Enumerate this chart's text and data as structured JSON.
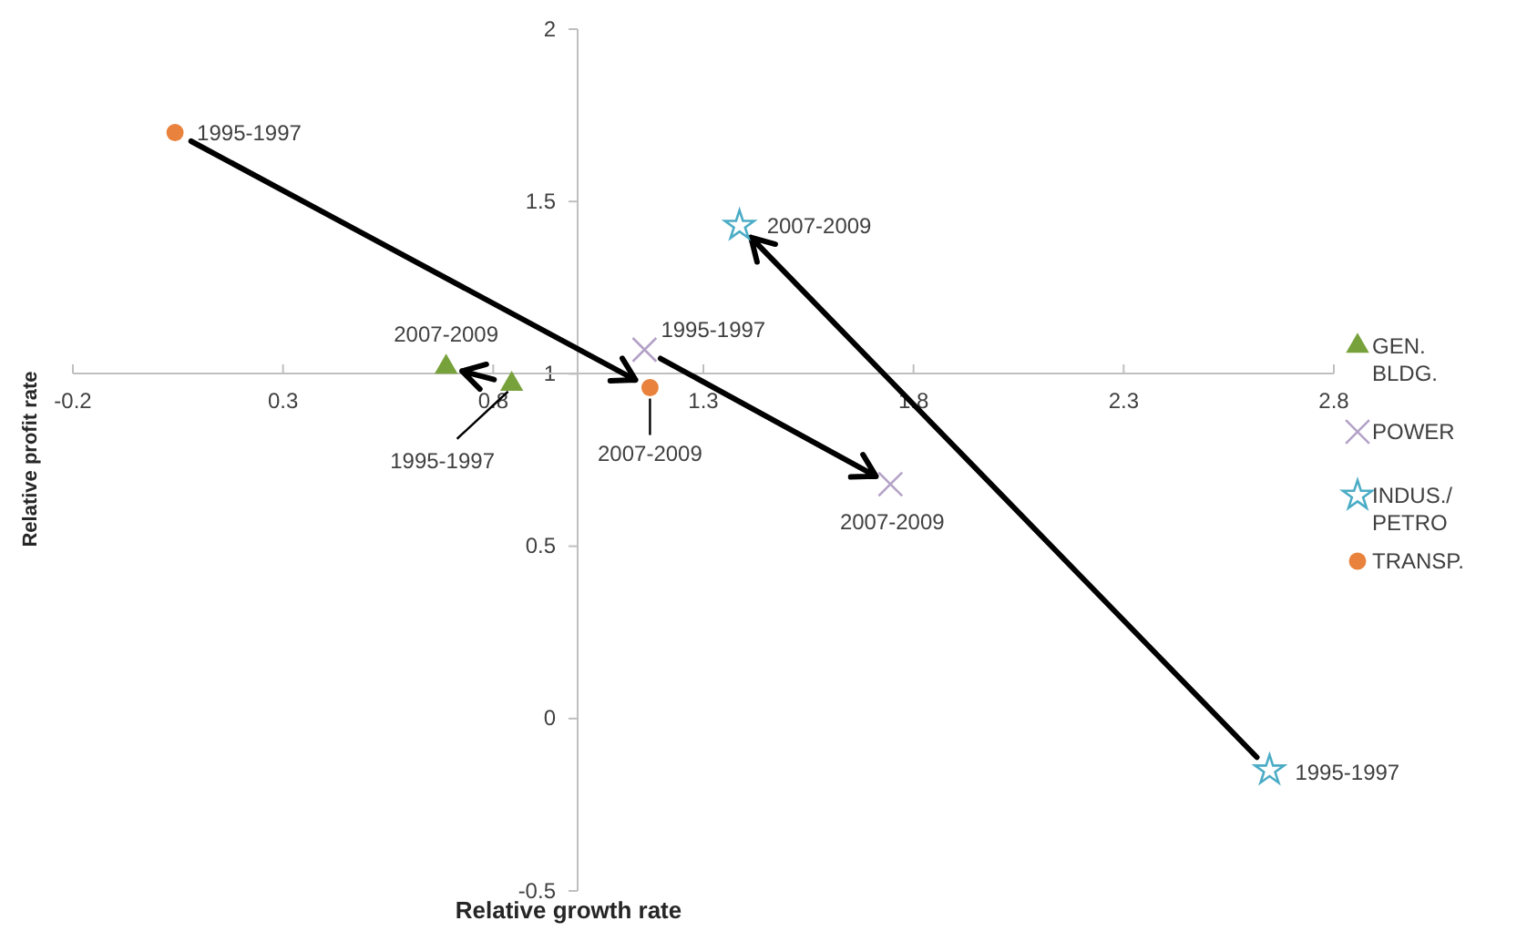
{
  "chart_data": {
    "type": "scatter",
    "xlabel": "Relative growth rate",
    "ylabel": "Relative profit rate",
    "xlim": [
      -0.2,
      2.8
    ],
    "xticks": [
      -0.2,
      0.3,
      0.8,
      1.3,
      1.8,
      2.3,
      2.8
    ],
    "ylim": [
      -0.5,
      2
    ],
    "yticks": [
      -0.5,
      0,
      0.5,
      1,
      1.5,
      2
    ],
    "grid": false,
    "legend": "right",
    "series": [
      {
        "name": "GEN. BLDG.",
        "color": "#77a23b",
        "marker": "triangle",
        "x": [
          0.844,
          0.688
        ],
        "values": [
          0.97,
          1.02
        ]
      },
      {
        "name": "POWER",
        "color": "#b3a2c7",
        "marker": "cross",
        "x": [
          1.16,
          1.745
        ],
        "values": [
          1.07,
          0.68
        ]
      },
      {
        "name": "INDUS./ PETRO",
        "color": "#4bacc6",
        "marker": "star",
        "x": [
          2.647,
          1.386
        ],
        "values": [
          -0.15,
          1.43
        ]
      },
      {
        "name": "TRANSP.",
        "color": "#e8823c",
        "marker": "circle",
        "x": [
          0.043,
          1.173
        ],
        "values": [
          1.7,
          0.96
        ]
      }
    ],
    "annotations": [
      {
        "text": "1995-1997",
        "x": 0.844,
        "y": 0.97
      },
      {
        "text": "2007-2009",
        "x": 0.688,
        "y": 1.02
      },
      {
        "text": "1995-1997",
        "x": 1.16,
        "y": 1.07
      },
      {
        "text": "2007-2009",
        "x": 1.745,
        "y": 0.68
      },
      {
        "text": "1995-1997",
        "x": 2.647,
        "y": -0.15
      },
      {
        "text": "2007-2009",
        "x": 1.386,
        "y": 1.43
      },
      {
        "text": "1995-1997",
        "x": 0.043,
        "y": 1.7
      },
      {
        "text": "2007-2009",
        "x": 1.173,
        "y": 0.96
      }
    ]
  }
}
